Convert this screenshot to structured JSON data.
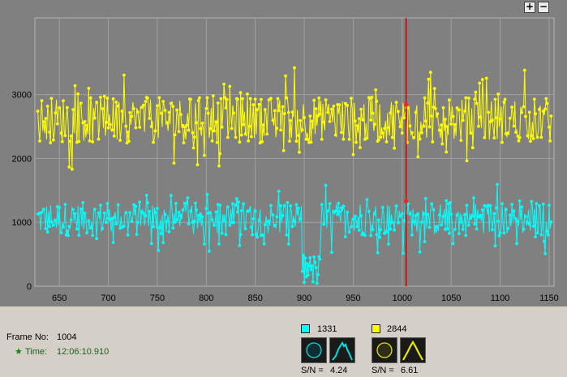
{
  "zoom": {
    "in_label": "+",
    "out_label": "−"
  },
  "frame": {
    "label": "Frame No:",
    "value": "1004"
  },
  "time": {
    "marker": "★",
    "label": "Time:",
    "value": "12:06:10.910"
  },
  "channels": [
    {
      "id": "1331",
      "color": "#00ffff",
      "sn_label": "S/N =",
      "sn": "4.24"
    },
    {
      "id": "2844",
      "color": "#ffff00",
      "sn_label": "S/N =",
      "sn": "6.61"
    }
  ],
  "colors": {
    "background": "#808080",
    "grid": "#a0a0a0",
    "cursor": "#cc0000",
    "cyan": "#00ffff",
    "yellow": "#ffff00"
  },
  "chart_data": {
    "type": "line",
    "x_ticks": [
      650,
      700,
      750,
      800,
      850,
      900,
      950,
      1000,
      1050,
      1100,
      1150
    ],
    "y_ticks": [
      0,
      1000,
      2000,
      3000
    ],
    "xlim": [
      625,
      1155
    ],
    "ylim": [
      0,
      4200
    ],
    "grid": true,
    "cursor_frame": 1004,
    "series": [
      {
        "name": "1331",
        "color": "#00ffff",
        "mean": 1050,
        "noise": 520,
        "dip": {
          "from": 898,
          "to": 916,
          "level": 250
        }
      },
      {
        "name": "2844",
        "color": "#ffff00",
        "mean": 2600,
        "noise": 720
      }
    ]
  }
}
